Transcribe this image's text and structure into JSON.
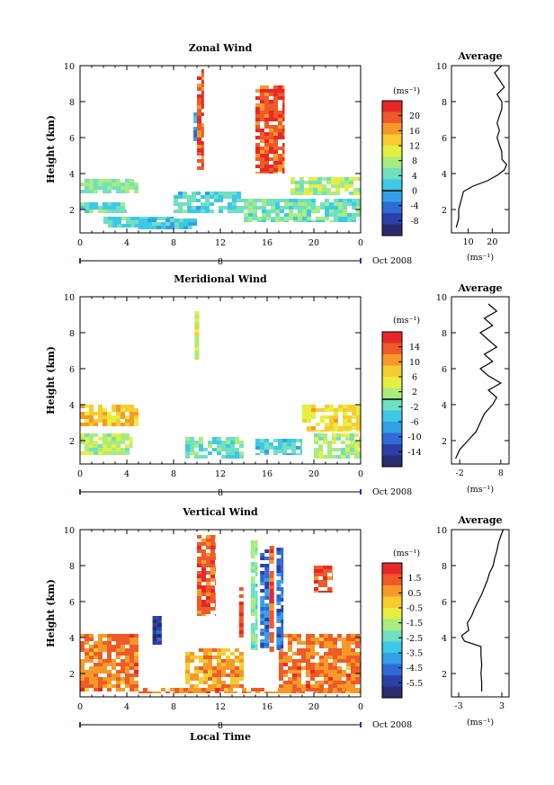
{
  "colors": [
    "#2a2a6e",
    "#2b3fa8",
    "#2f6ad6",
    "#33a0e6",
    "#3ec8e8",
    "#6fe0c0",
    "#a8ec80",
    "#e6ee40",
    "#f7cc30",
    "#f59a28",
    "#ee5a28",
    "#e62828"
  ],
  "chart_data": [
    {
      "type": "heatmap",
      "title": "Zonal Wind",
      "ylabel": "Height (km)",
      "xlabel": "",
      "x_ticks": [
        "0",
        "4",
        "8",
        "12",
        "16",
        "20",
        "0"
      ],
      "y_ticks": [
        "2",
        "4",
        "6",
        "8",
        "10"
      ],
      "xlim": [
        0,
        24
      ],
      "ylim": [
        0.7,
        10
      ],
      "date_marker": "8",
      "date_label": "Oct 2008",
      "colorbar_unit": "(ms⁻¹)",
      "colorbar_ticks": [
        "20",
        "16",
        "12",
        "8",
        "4",
        "0",
        "-4",
        "-8"
      ],
      "colorbar_zero_level": "0",
      "profile": {
        "title": "Average",
        "xlabel": "(ms⁻¹)",
        "x_ticks": [
          "10",
          "20"
        ],
        "xlim": [
          3,
          27
        ],
        "y_ticks": [
          "2",
          "4",
          "6",
          "8",
          "10"
        ],
        "heights": [
          1,
          1.5,
          2,
          2.5,
          3,
          3.3,
          3.6,
          3.9,
          4.2,
          4.5,
          4.8,
          5.2,
          5.6,
          6.0,
          6.4,
          6.8,
          7.2,
          7.6,
          8.0,
          8.4,
          8.8,
          9.2,
          9.6,
          10
        ],
        "values": [
          5,
          6,
          6,
          7,
          8,
          12,
          18,
          22,
          25,
          26,
          24,
          24,
          23,
          22,
          23,
          22,
          23,
          24,
          24,
          22,
          25,
          23,
          21,
          24
        ]
      },
      "regions": [
        {
          "x": [
            0,
            5
          ],
          "z": [
            2.9,
            3.7
          ],
          "value": 6
        },
        {
          "x": [
            0,
            4
          ],
          "z": [
            1.8,
            2.4
          ],
          "value": 4
        },
        {
          "x": [
            2,
            8
          ],
          "z": [
            1,
            1.6
          ],
          "value": 3
        },
        {
          "x": [
            5,
            10
          ],
          "z": [
            0.9,
            1.5
          ],
          "value": 1
        },
        {
          "x": [
            8,
            14
          ],
          "z": [
            1.8,
            3
          ],
          "value": 3
        },
        {
          "x": [
            14,
            24
          ],
          "z": [
            1.3,
            2.6
          ],
          "value": 5
        },
        {
          "x": [
            18,
            24
          ],
          "z": [
            2.8,
            3.8
          ],
          "value": 8
        },
        {
          "x": [
            10,
            10.6
          ],
          "z": [
            4.2,
            9.8
          ],
          "value": 20
        },
        {
          "x": [
            9.7,
            10
          ],
          "z": [
            5.8,
            7.4
          ],
          "value": -2
        },
        {
          "x": [
            15,
            17.5
          ],
          "z": [
            4,
            8.9
          ],
          "value": 20
        }
      ]
    },
    {
      "type": "heatmap",
      "title": "Meridional Wind",
      "ylabel": "Height (km)",
      "xlabel": "",
      "x_ticks": [
        "0",
        "4",
        "8",
        "12",
        "16",
        "20",
        "0"
      ],
      "y_ticks": [
        "2",
        "4",
        "6",
        "8",
        "10"
      ],
      "xlim": [
        0,
        24
      ],
      "ylim": [
        0.7,
        10
      ],
      "date_marker": "8",
      "date_label": "Oct 2008",
      "colorbar_unit": "(ms⁻¹)",
      "colorbar_ticks": [
        "14",
        "10",
        "6",
        "2",
        "-2",
        "-6",
        "-10",
        "-14"
      ],
      "colorbar_zero_level": "0",
      "profile": {
        "title": "Average",
        "xlabel": "(ms⁻¹)",
        "x_ticks": [
          "-2",
          "8"
        ],
        "xlim": [
          -4,
          10
        ],
        "y_ticks": [
          "2",
          "4",
          "6",
          "8",
          "10"
        ],
        "heights": [
          1,
          1.5,
          2,
          2.5,
          3,
          3.5,
          4,
          4.4,
          4.8,
          5.2,
          5.6,
          6.0,
          6.4,
          6.8,
          7.2,
          7.6,
          8,
          8.4,
          8.8,
          9.2,
          9.6
        ],
        "values": [
          -3,
          -2,
          0,
          2,
          3,
          4,
          6,
          7,
          5,
          8,
          5,
          3,
          6,
          4,
          7,
          5,
          3,
          6,
          4,
          7,
          5
        ]
      },
      "regions": [
        {
          "x": [
            0,
            5
          ],
          "z": [
            2.8,
            4
          ],
          "value": 8
        },
        {
          "x": [
            0,
            4.5
          ],
          "z": [
            1.2,
            2.4
          ],
          "value": 2
        },
        {
          "x": [
            9,
            14
          ],
          "z": [
            1,
            2.2
          ],
          "value": -2
        },
        {
          "x": [
            15,
            19
          ],
          "z": [
            1.2,
            2.1
          ],
          "value": -4
        },
        {
          "x": [
            19,
            24
          ],
          "z": [
            2.5,
            4
          ],
          "value": 6
        },
        {
          "x": [
            20,
            24
          ],
          "z": [
            1,
            2.4
          ],
          "value": 2
        },
        {
          "x": [
            9.8,
            10.2
          ],
          "z": [
            6.5,
            9.2
          ],
          "value": 4
        }
      ]
    },
    {
      "type": "heatmap",
      "title": "Vertical Wind",
      "ylabel": "Height (km)",
      "xlabel": "Local Time",
      "x_ticks": [
        "0",
        "4",
        "8",
        "12",
        "16",
        "20",
        "0"
      ],
      "y_ticks": [
        "2",
        "4",
        "6",
        "8",
        "10"
      ],
      "xlim": [
        0,
        24
      ],
      "ylim": [
        0.7,
        10
      ],
      "date_marker": "8",
      "date_label": "Oct 2008",
      "colorbar_unit": "(ms⁻¹)",
      "colorbar_ticks": [
        "1.5",
        "0.5",
        "-0.5",
        "-1.5",
        "-2.5",
        "-3.5",
        "-4.5",
        "-5.5"
      ],
      "colorbar_zero_level": "",
      "profile": {
        "title": "Average",
        "xlabel": "(ms⁻¹)",
        "x_ticks": [
          "-3",
          "3"
        ],
        "xlim": [
          -4,
          4
        ],
        "y_ticks": [
          "2",
          "4",
          "6",
          "8",
          "10"
        ],
        "heights": [
          1,
          1.5,
          2,
          2.5,
          3,
          3.5,
          3.8,
          4.1,
          4.4,
          4.8,
          5.2,
          5.6,
          6,
          6.4,
          6.8,
          7.2,
          7.6,
          8,
          8.4,
          8.8,
          9.2,
          9.6,
          10
        ],
        "values": [
          0.2,
          0.2,
          0.1,
          0.2,
          0.1,
          0.1,
          -2.2,
          -2.6,
          -1.6,
          -1.8,
          -1.2,
          -0.8,
          -0.3,
          0.2,
          0.6,
          1.0,
          1.3,
          1.8,
          2.0,
          2.3,
          2.5,
          2.8,
          3.2
        ]
      },
      "regions": [
        {
          "x": [
            0,
            5
          ],
          "z": [
            1,
            4.2
          ],
          "value": 1
        },
        {
          "x": [
            5,
            24
          ],
          "z": [
            0.9,
            1.2
          ],
          "value": 1
        },
        {
          "x": [
            9,
            14
          ],
          "z": [
            1.2,
            3.4
          ],
          "value": 0.5
        },
        {
          "x": [
            17,
            24
          ],
          "z": [
            1,
            4.2
          ],
          "value": 1
        },
        {
          "x": [
            10,
            11.6
          ],
          "z": [
            5.2,
            9.7
          ],
          "value": 1.5
        },
        {
          "x": [
            6.2,
            7
          ],
          "z": [
            3.6,
            5.2
          ],
          "value": -5.5
        },
        {
          "x": [
            13.6,
            14
          ],
          "z": [
            4,
            6.8
          ],
          "value": 1.5
        },
        {
          "x": [
            14.6,
            15.2
          ],
          "z": [
            3.3,
            9.4
          ],
          "value": -2
        },
        {
          "x": [
            15.4,
            16.2
          ],
          "z": [
            3.4,
            8.9
          ],
          "value": -4.5
        },
        {
          "x": [
            16.2,
            16.6
          ],
          "z": [
            3.2,
            9.1
          ],
          "value": 1.5
        },
        {
          "x": [
            16.8,
            17.4
          ],
          "z": [
            3.3,
            9
          ],
          "value": -4.5
        },
        {
          "x": [
            20,
            21.6
          ],
          "z": [
            6.5,
            8
          ],
          "value": 1.5
        }
      ]
    }
  ]
}
